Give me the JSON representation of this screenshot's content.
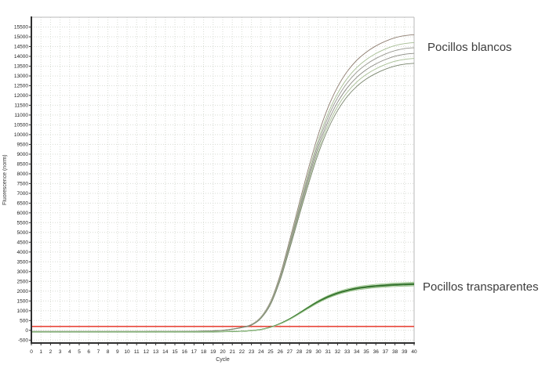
{
  "figure": {
    "ylabel": "Fluorescence (norm)",
    "xlabel": "Cycle"
  },
  "chart_data": {
    "type": "line",
    "title": "",
    "xlabel": "Cycle",
    "ylabel": "Fluorescence (norm)",
    "xlim": [
      0,
      40
    ],
    "ylim": [
      -650,
      16000
    ],
    "x_ticks": {
      "min": 0,
      "max": 40,
      "step": 1
    },
    "y_ticks": {
      "min": -500,
      "max": 15500,
      "step": 500
    },
    "grid": "dotted",
    "grid_color": "#d8dcd4",
    "axis_color": "#2f2f2f",
    "frame_color": "#b8b8b8",
    "threshold": {
      "value": 200,
      "color": "#e8473b"
    },
    "x": [
      0,
      1,
      2,
      3,
      4,
      5,
      6,
      7,
      8,
      9,
      10,
      11,
      12,
      13,
      14,
      15,
      16,
      17,
      18,
      19,
      20,
      21,
      22,
      23,
      24,
      25,
      26,
      27,
      28,
      29,
      30,
      31,
      32,
      33,
      34,
      35,
      36,
      37,
      38,
      39,
      40
    ],
    "series": [
      {
        "name": "Pocillos blancos",
        "baseline": -60,
        "values": [
          -60,
          -60,
          -62,
          -61,
          -60,
          -62,
          -61,
          -60,
          -61,
          -62,
          -60,
          -61,
          -60,
          -59,
          -60,
          -58,
          -55,
          -48,
          -40,
          -25,
          0,
          60,
          150,
          280,
          650,
          1400,
          2700,
          4400,
          6200,
          7950,
          9550,
          10850,
          11850,
          12600,
          13150,
          13550,
          13850,
          14080,
          14250,
          14350,
          14400
        ],
        "bundle": [
          {
            "scale": 1.049,
            "color": "#8e7d70",
            "width": 0.9
          },
          {
            "scale": 1.021,
            "color": "#a6bd93",
            "width": 0.9
          },
          {
            "scale": 1.003,
            "color": "#96968e",
            "width": 0.9
          },
          {
            "scale": 0.983,
            "color": "#8a8a82",
            "width": 0.9
          },
          {
            "scale": 0.965,
            "color": "#a6bd93",
            "width": 0.9
          },
          {
            "scale": 0.948,
            "color": "#79856d",
            "width": 0.9
          }
        ]
      },
      {
        "name": "Pocillos transparentes",
        "baseline": -80,
        "values": [
          -80,
          -80,
          -82,
          -81,
          -80,
          -82,
          -80,
          -81,
          -80,
          -82,
          -80,
          -81,
          -80,
          -80,
          -79,
          -80,
          -78,
          -77,
          -75,
          -72,
          -68,
          -60,
          -45,
          -15,
          40,
          160,
          340,
          580,
          870,
          1180,
          1470,
          1710,
          1900,
          2040,
          2145,
          2215,
          2265,
          2300,
          2330,
          2350,
          2365
        ],
        "bundle": [
          {
            "scale": 1.035,
            "color": "#a5cc96",
            "width": 1.0
          },
          {
            "scale": 1.012,
            "color": "#4c8a3f",
            "width": 1.0
          },
          {
            "scale": 1.0,
            "color": "#2f6b2a",
            "width": 1.3
          },
          {
            "scale": 0.985,
            "color": "#428337",
            "width": 1.0
          },
          {
            "scale": 0.962,
            "color": "#9dc48e",
            "width": 1.0
          }
        ]
      }
    ],
    "annotations": [
      {
        "text": "Pocillos blancos"
      },
      {
        "text": "Pocillos transparentes"
      }
    ],
    "legend_position": "right-outside"
  }
}
